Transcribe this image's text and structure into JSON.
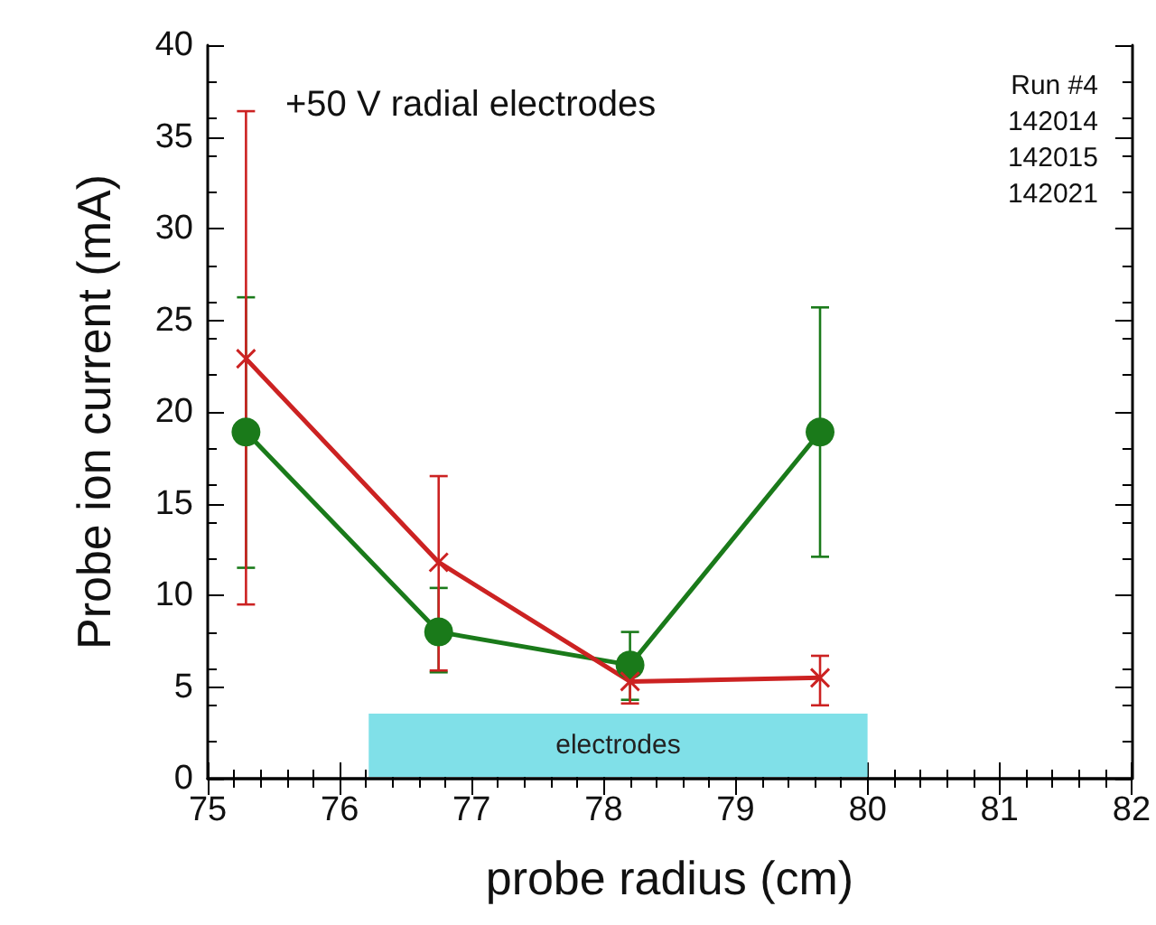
{
  "chart_data": {
    "type": "line",
    "xlabel": "probe radius (cm)",
    "ylabel": "Probe ion current (mA)",
    "x": [
      75.29,
      76.75,
      78.2,
      79.64
    ],
    "series": [
      {
        "color": "#1a7a1a",
        "marker": "circle",
        "values": [
          18.9,
          8.0,
          6.2,
          18.9
        ],
        "errors": [
          [
            11.5,
            26.25
          ],
          [
            5.8,
            10.4
          ],
          [
            4.3,
            8.0
          ],
          [
            12.1,
            25.7
          ]
        ]
      },
      {
        "color": "#cc2222",
        "marker": "cross",
        "values": [
          22.9,
          11.8,
          5.3,
          5.5
        ],
        "errors": [
          [
            9.5,
            36.4
          ],
          [
            5.9,
            16.5
          ],
          [
            4.1,
            5.7
          ],
          [
            4.0,
            6.7
          ]
        ]
      }
    ],
    "xlim": [
      75,
      82
    ],
    "xticks": [
      75,
      76,
      77,
      78,
      79,
      80,
      81,
      82
    ],
    "ylim": [
      0,
      40
    ],
    "yticks": [
      0,
      5,
      10,
      15,
      20,
      25,
      30,
      35,
      40
    ],
    "grid": false,
    "bands": [
      {
        "axis": "x",
        "from": 76.22,
        "to": 80,
        "label": "electrodes",
        "color": "#80e0e8"
      }
    ],
    "annotations": [
      "+50 V radial electrodes",
      "Run #4",
      "142014",
      "142015",
      "142021"
    ]
  }
}
